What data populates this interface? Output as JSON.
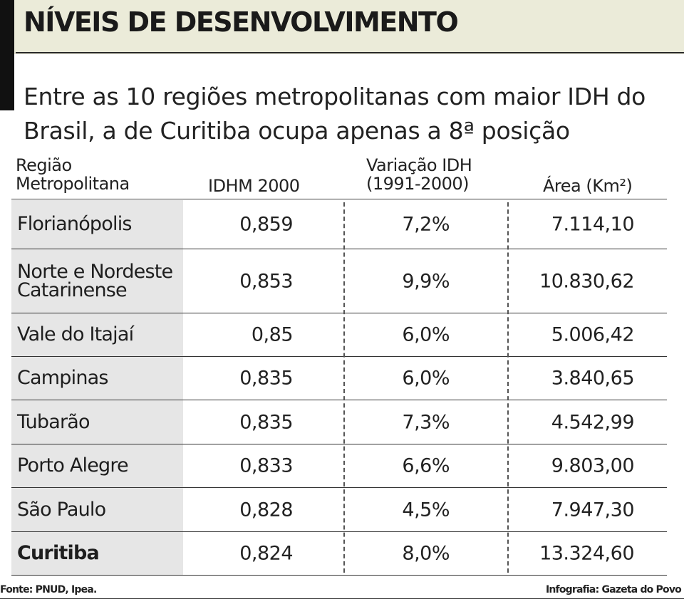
{
  "title": "NÍVEIS DE DESENVOLVIMENTO",
  "subtitle": "Entre as 10 regiões metropolitanas com maior IDH do Brasil, a de Curitiba ocupa apenas a 8ª posição",
  "columns": {
    "regiao_line1": "Região",
    "regiao_line2": "Metropolitana",
    "idhm": "IDHM 2000",
    "variacao_line1": "Variação IDH",
    "variacao_line2": "(1991-2000)",
    "area": "Área (Km²)"
  },
  "chart_data": {
    "type": "table",
    "columns": [
      "Região Metropolitana",
      "IDHM 2000",
      "Variação IDH (1991-2000)",
      "Área (Km²)"
    ],
    "rows": [
      {
        "regiao": "Florianópolis",
        "idhm": "0,859",
        "variacao": "7,2%",
        "area": "7.114,10"
      },
      {
        "regiao": "Norte e Nordeste Catarinense",
        "idhm": "0,853",
        "variacao": "9,9%",
        "area": "10.830,62"
      },
      {
        "regiao": "Vale do Itajaí",
        "idhm": "0,85",
        "variacao": "6,0%",
        "area": "5.006,42"
      },
      {
        "regiao": "Campinas",
        "idhm": "0,835",
        "variacao": "6,0%",
        "area": "3.840,65"
      },
      {
        "regiao": "Tubarão",
        "idhm": "0,835",
        "variacao": "7,3%",
        "area": "4.542,99"
      },
      {
        "regiao": "Porto Alegre",
        "idhm": "0,833",
        "variacao": "6,6%",
        "area": "9.803,00"
      },
      {
        "regiao": "São Paulo",
        "idhm": "0,828",
        "variacao": "4,5%",
        "area": "7.947,30"
      },
      {
        "regiao": "Curitiba",
        "idhm": "0,824",
        "variacao": "8,0%",
        "area": "13.324,60"
      }
    ]
  },
  "footer": {
    "source": "Fonte: PNUD, Ipea.",
    "credit": "Infografia: Gazeta do Povo"
  }
}
